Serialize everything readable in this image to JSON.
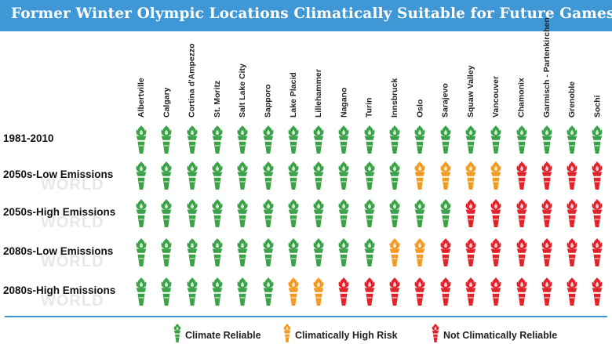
{
  "title": "Former Winter Olympic Locations Climatically Suitable for Future Games",
  "chart_data": {
    "type": "table",
    "title": "Former Winter Olympic Locations Climatically Suitable for Future Games",
    "columns": [
      "Albertville",
      "Calgary",
      "Cortina d'Ampezzo",
      "St. Moritz",
      "Salt Lake City",
      "Sapporo",
      "Lake Placid",
      "Lillehammer",
      "Nagano",
      "Turin",
      "Innsbruck",
      "Oslo",
      "Sarajevo",
      "Squaw Valley",
      "Vancouver",
      "Chamonix",
      "Garmisch - Partenkirchen",
      "Grenoble",
      "Sochi"
    ],
    "rows": [
      {
        "label": "1981-2010",
        "values": [
          "reliable",
          "reliable",
          "reliable",
          "reliable",
          "reliable",
          "reliable",
          "reliable",
          "reliable",
          "reliable",
          "reliable",
          "reliable",
          "reliable",
          "reliable",
          "reliable",
          "reliable",
          "reliable",
          "reliable",
          "reliable",
          "reliable"
        ]
      },
      {
        "label": "2050s-Low Emissions",
        "values": [
          "reliable",
          "reliable",
          "reliable",
          "reliable",
          "reliable",
          "reliable",
          "reliable",
          "reliable",
          "reliable",
          "reliable",
          "reliable",
          "high-risk",
          "high-risk",
          "high-risk",
          "high-risk",
          "not-reliable",
          "not-reliable",
          "not-reliable",
          "not-reliable"
        ]
      },
      {
        "label": "2050s-High Emissions",
        "values": [
          "reliable",
          "reliable",
          "reliable",
          "reliable",
          "reliable",
          "reliable",
          "reliable",
          "reliable",
          "reliable",
          "reliable",
          "reliable",
          "reliable",
          "reliable",
          "not-reliable",
          "not-reliable",
          "not-reliable",
          "not-reliable",
          "not-reliable",
          "not-reliable"
        ]
      },
      {
        "label": "2080s-Low Emissions",
        "values": [
          "reliable",
          "reliable",
          "reliable",
          "reliable",
          "reliable",
          "reliable",
          "reliable",
          "reliable",
          "reliable",
          "reliable",
          "high-risk",
          "high-risk",
          "not-reliable",
          "not-reliable",
          "not-reliable",
          "not-reliable",
          "not-reliable",
          "not-reliable",
          "not-reliable"
        ]
      },
      {
        "label": "2080s-High Emissions",
        "values": [
          "reliable",
          "reliable",
          "reliable",
          "reliable",
          "reliable",
          "reliable",
          "high-risk",
          "high-risk",
          "not-reliable",
          "not-reliable",
          "not-reliable",
          "not-reliable",
          "not-reliable",
          "not-reliable",
          "not-reliable",
          "not-reliable",
          "not-reliable",
          "not-reliable",
          "not-reliable"
        ]
      }
    ],
    "legend": [
      {
        "key": "reliable",
        "label": "Climate Reliable",
        "color": "#3aa348"
      },
      {
        "key": "high-risk",
        "label": "Climatically High Risk",
        "color": "#f39a22"
      },
      {
        "key": "not-reliable",
        "label": "Not Climatically Reliable",
        "color": "#e2232a"
      }
    ],
    "legend_position": "bottom"
  },
  "watermark": "WORLD",
  "icon": "olympic-torch-icon"
}
